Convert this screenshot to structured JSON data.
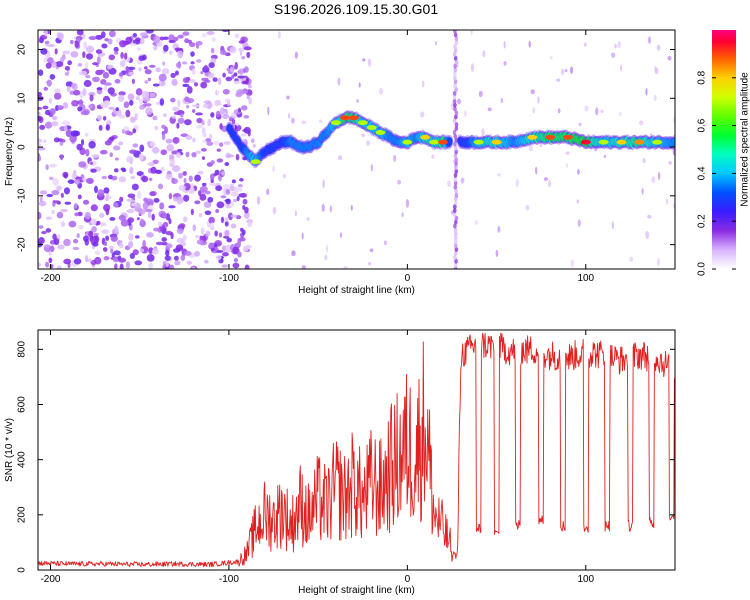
{
  "title": "S196.2026.109.15.30.G01",
  "chart_data": [
    {
      "type": "heatmap",
      "xlabel": "Height of straight line (km)",
      "ylabel": "Frequency (Hz)",
      "xlim": [
        -207,
        150
      ],
      "ylim": [
        -25,
        24
      ],
      "xticks": [
        -200,
        -100,
        0,
        100
      ],
      "yticks": [
        20,
        10,
        0,
        -10,
        -20
      ],
      "colorbar": {
        "label": "Normalized spectral amplitude",
        "range": [
          0,
          1
        ],
        "ticks": [
          "0.0",
          "0.2",
          "0.4",
          "0.6",
          "0.8"
        ]
      },
      "ridge": {
        "x": [
          -100,
          -95,
          -90,
          -85,
          -80,
          -75,
          -70,
          -65,
          -60,
          -55,
          -50,
          -45,
          -40,
          -35,
          -30,
          -25,
          -20,
          -15,
          -10,
          -5,
          0,
          5,
          10,
          15,
          20,
          25,
          30,
          40,
          50,
          60,
          70,
          80,
          90,
          100,
          110,
          120,
          130,
          140,
          150
        ],
        "freq": [
          4,
          1,
          -1,
          -3,
          -1,
          0,
          1,
          1,
          0,
          0,
          1,
          3,
          5,
          6,
          6,
          5,
          4,
          3,
          2,
          1,
          1,
          2,
          2,
          1,
          1,
          1,
          1,
          1,
          1,
          1,
          2,
          2,
          2,
          1,
          1,
          1,
          1,
          1,
          1
        ],
        "amplitude": [
          0.3,
          0.4,
          0.6,
          0.7,
          0.5,
          0.5,
          0.5,
          0.6,
          0.6,
          0.6,
          0.6,
          0.6,
          0.7,
          0.9,
          0.9,
          0.7,
          0.7,
          0.7,
          0.6,
          0.6,
          0.7,
          0.6,
          0.8,
          0.7,
          0.9,
          0.3,
          0.4,
          0.7,
          0.8,
          0.6,
          0.8,
          0.9,
          0.9,
          0.95,
          0.7,
          0.8,
          0.85,
          0.7,
          0.6
        ]
      },
      "noise_region": {
        "x_range": [
          -207,
          -100
        ],
        "freq_range": [
          -25,
          24
        ],
        "amplitude_range": [
          0.0,
          0.2
        ]
      },
      "vertical_streak": {
        "x": 27,
        "freq_range": [
          -25,
          24
        ]
      }
    },
    {
      "type": "line",
      "xlabel": "Height of straight line (km)",
      "ylabel": "SNR (10 * v/v)",
      "xlim": [
        -207,
        150
      ],
      "ylim": [
        0,
        870
      ],
      "xticks": [
        -200,
        -100,
        0,
        100
      ],
      "yticks": [
        0,
        200,
        400,
        600,
        800
      ],
      "series": [
        {
          "name": "SNR",
          "color": "#e02020",
          "x": [
            -207,
            -190,
            -170,
            -150,
            -130,
            -110,
            -95,
            -90,
            -85,
            -80,
            -75,
            -70,
            -65,
            -60,
            -55,
            -50,
            -45,
            -40,
            -35,
            -30,
            -25,
            -20,
            -15,
            -10,
            -5,
            0,
            5,
            10,
            15,
            20,
            25,
            28,
            30,
            35,
            40,
            50,
            60,
            70,
            80,
            90,
            100,
            110,
            120,
            130,
            140,
            150
          ],
          "values": [
            25,
            22,
            22,
            20,
            22,
            20,
            30,
            60,
            150,
            200,
            180,
            220,
            160,
            240,
            190,
            260,
            230,
            300,
            260,
            320,
            250,
            320,
            290,
            360,
            400,
            450,
            420,
            550,
            200,
            150,
            80,
            30,
            780,
            800,
            820,
            810,
            790,
            800,
            780,
            770,
            790,
            780,
            760,
            780,
            770,
            720
          ],
          "dropouts": [
            {
              "x": 40,
              "value": 150
            },
            {
              "x": 50,
              "value": 130
            },
            {
              "x": 62,
              "value": 160
            },
            {
              "x": 75,
              "value": 180
            },
            {
              "x": 87,
              "value": 160
            },
            {
              "x": 100,
              "value": 150
            },
            {
              "x": 112,
              "value": 160
            },
            {
              "x": 125,
              "value": 160
            },
            {
              "x": 137,
              "value": 170
            },
            {
              "x": 148,
              "value": 200
            }
          ]
        }
      ]
    }
  ]
}
